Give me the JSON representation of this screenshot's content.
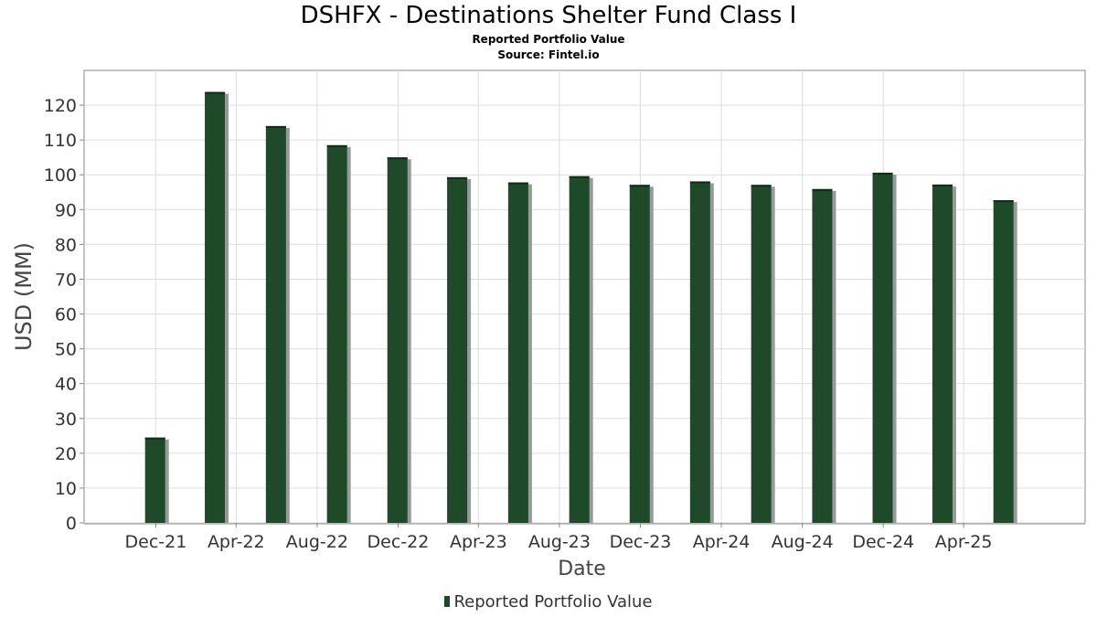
{
  "chart_data": {
    "type": "bar",
    "title": "DSHFX - Destinations Shelter Fund Class I",
    "subtitle": "Reported Portfolio Value",
    "source": "Source: Fintel.io",
    "xlabel": "Date",
    "ylabel": "USD (MM)",
    "ylim": [
      0,
      130
    ],
    "yticks": [
      0,
      10,
      20,
      30,
      40,
      50,
      60,
      70,
      80,
      90,
      100,
      110,
      120
    ],
    "xtick_labels": [
      "Dec-21",
      "Apr-22",
      "Aug-22",
      "Dec-22",
      "Apr-23",
      "Aug-23",
      "Dec-23",
      "Apr-24",
      "Aug-24",
      "Dec-24",
      "Apr-25"
    ],
    "series": [
      {
        "name": "Reported Portfolio Value",
        "color": "#1f4a2a",
        "points": [
          {
            "date": "2021-11-30",
            "value": 24.5
          },
          {
            "date": "2022-02-28",
            "value": 123.8
          },
          {
            "date": "2022-05-31",
            "value": 114.0
          },
          {
            "date": "2022-08-31",
            "value": 108.5
          },
          {
            "date": "2022-11-30",
            "value": 105.0
          },
          {
            "date": "2023-02-28",
            "value": 99.3
          },
          {
            "date": "2023-05-31",
            "value": 97.8
          },
          {
            "date": "2023-08-31",
            "value": 99.6
          },
          {
            "date": "2023-11-30",
            "value": 97.1
          },
          {
            "date": "2024-02-29",
            "value": 98.1
          },
          {
            "date": "2024-05-31",
            "value": 97.1
          },
          {
            "date": "2024-08-31",
            "value": 95.9
          },
          {
            "date": "2024-11-30",
            "value": 100.6
          },
          {
            "date": "2025-02-28",
            "value": 97.2
          },
          {
            "date": "2025-05-31",
            "value": 92.7
          }
        ]
      }
    ],
    "grid": true,
    "legend_position": "bottom-center"
  }
}
